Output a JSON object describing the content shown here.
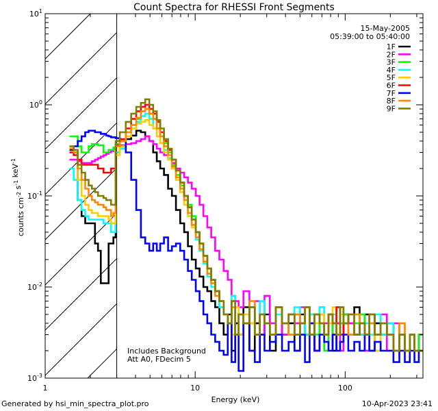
{
  "chart_data": {
    "type": "line",
    "title": "Count Spectra for RHESSI Front Segments",
    "xlabel": "Energy (keV)",
    "ylabel": "counts cm^-2 s^-1 keV^-1",
    "xscale": "log",
    "yscale": "log",
    "xlim": [
      1,
      330
    ],
    "ylim": [
      0.001,
      10
    ],
    "x_ticks": [
      {
        "value": 1,
        "label": "1"
      },
      {
        "value": 10,
        "label": "10"
      },
      {
        "value": 100,
        "label": "100"
      }
    ],
    "y_ticks": [
      {
        "value": 0.001,
        "base": "10",
        "exp": "-3"
      },
      {
        "value": 0.01,
        "base": "10",
        "exp": "-2"
      },
      {
        "value": 0.1,
        "base": "10",
        "exp": "-1"
      },
      {
        "value": 1,
        "base": "10",
        "exp": "0"
      },
      {
        "value": 10,
        "base": "10",
        "exp": "1"
      }
    ],
    "attenuated_region_max_kev": 3,
    "date": "15-May-2005",
    "time_range": "05:39:00 to 05:40:00",
    "annotations": [
      "Includes Background",
      "Att A0, FDecim 5"
    ],
    "energies": [
      1.5,
      1.6,
      1.7,
      1.8,
      1.9,
      2.0,
      2.1,
      2.2,
      2.3,
      2.4,
      2.5,
      2.6,
      2.7,
      2.8,
      2.9,
      3.0,
      3.3,
      3.6,
      3.9,
      4.2,
      4.5,
      4.8,
      5.1,
      5.4,
      5.7,
      6.0,
      6.4,
      6.8,
      7.2,
      7.7,
      8.2,
      8.7,
      9.2,
      9.8,
      10.4,
      11.0,
      11.7,
      12.4,
      13.2,
      14.0,
      15.0,
      16.0,
      17.0,
      18.0,
      19.0,
      20.0,
      22.0,
      24.0,
      26.0,
      28.0,
      30.0,
      33.0,
      36.0,
      40.0,
      44.0,
      48.0,
      52.0,
      56.0,
      60.0,
      65.0,
      70.0,
      75.0,
      80.0,
      85.0,
      90.0,
      95.0,
      100.0,
      110.0,
      120.0,
      130.0,
      140.0,
      150.0,
      165.0,
      180.0,
      200.0,
      220.0,
      240.0,
      260.0,
      280.0,
      300.0,
      320.0
    ],
    "series": [
      {
        "name": "1F",
        "color": "#000000",
        "values": [
          0.32,
          0.3,
          0.09,
          0.06,
          0.05,
          0.05,
          0.05,
          0.03,
          0.025,
          0.011,
          0.011,
          0.011,
          0.03,
          0.03,
          0.035,
          0.3,
          0.33,
          0.42,
          0.46,
          0.52,
          0.5,
          0.45,
          0.4,
          0.3,
          0.24,
          0.2,
          0.17,
          0.12,
          0.1,
          0.07,
          0.05,
          0.04,
          0.028,
          0.02,
          0.016,
          0.013,
          0.01,
          0.009,
          0.007,
          0.006,
          0.004,
          0.003,
          0.005,
          0.002,
          0.004,
          0.003,
          0.006,
          0.002,
          0.004,
          0.003,
          0.005,
          0.002,
          0.006,
          0.003,
          0.004,
          0.002,
          0.005,
          0.003,
          0.004,
          0.002,
          0.004,
          0.003,
          0.005,
          0.002,
          0.004,
          0.003,
          0.005,
          0.004,
          0.006,
          0.003,
          0.005,
          0.002,
          0.004,
          0.003,
          0.004,
          0.002,
          0.003,
          0.002,
          0.003,
          0.002,
          0.003
        ]
      },
      {
        "name": "2F",
        "color": "#ff00ff",
        "values": [
          0.25,
          0.25,
          0.24,
          0.23,
          0.23,
          0.23,
          0.24,
          0.25,
          0.26,
          0.27,
          0.28,
          0.29,
          0.3,
          0.31,
          0.33,
          0.35,
          0.36,
          0.37,
          0.38,
          0.4,
          0.42,
          0.45,
          0.4,
          0.37,
          0.33,
          0.3,
          0.28,
          0.26,
          0.23,
          0.2,
          0.18,
          0.16,
          0.14,
          0.12,
          0.1,
          0.08,
          0.06,
          0.045,
          0.035,
          0.025,
          0.02,
          0.015,
          0.012,
          0.008,
          0.007,
          0.006,
          0.009,
          0.004,
          0.007,
          0.003,
          0.008,
          0.004,
          0.006,
          0.003,
          0.005,
          0.004,
          0.006,
          0.003,
          0.005,
          0.002,
          0.006,
          0.004,
          0.005,
          0.003,
          0.004,
          0.002,
          0.005,
          0.004,
          0.003,
          0.005,
          0.002,
          0.004,
          0.003,
          0.005,
          0.002,
          0.004,
          0.003,
          0.002,
          0.003,
          0.002,
          0.003
        ]
      },
      {
        "name": "3F",
        "color": "#00ff00",
        "values": [
          0.45,
          0.45,
          0.35,
          0.3,
          0.3,
          0.35,
          0.37,
          0.37,
          0.36,
          0.36,
          0.3,
          0.3,
          0.32,
          0.32,
          0.34,
          0.37,
          0.4,
          0.5,
          0.6,
          0.7,
          0.85,
          0.9,
          0.8,
          0.7,
          0.55,
          0.45,
          0.38,
          0.3,
          0.22,
          0.17,
          0.13,
          0.1,
          0.08,
          0.06,
          0.04,
          0.03,
          0.022,
          0.016,
          0.012,
          0.009,
          0.006,
          0.005,
          0.004,
          0.007,
          0.003,
          0.005,
          0.004,
          0.006,
          0.003,
          0.005,
          0.004,
          0.003,
          0.006,
          0.004,
          0.003,
          0.005,
          0.003,
          0.006,
          0.004,
          0.003,
          0.005,
          0.002,
          0.004,
          0.003,
          0.006,
          0.004,
          0.005,
          0.003,
          0.004,
          0.005,
          0.003,
          0.004,
          0.002,
          0.004,
          0.003,
          0.002,
          0.003,
          0.002,
          0.003,
          0.002,
          0.003
        ]
      },
      {
        "name": "4F",
        "color": "#00ffff",
        "values": [
          0.2,
          0.15,
          0.09,
          0.07,
          0.06,
          0.055,
          0.055,
          0.055,
          0.055,
          0.055,
          0.05,
          0.05,
          0.05,
          0.04,
          0.04,
          0.3,
          0.33,
          0.45,
          0.55,
          0.65,
          0.75,
          0.8,
          0.7,
          0.55,
          0.45,
          0.38,
          0.32,
          0.26,
          0.2,
          0.15,
          0.11,
          0.08,
          0.06,
          0.045,
          0.033,
          0.025,
          0.018,
          0.013,
          0.01,
          0.008,
          0.006,
          0.005,
          0.004,
          0.008,
          0.003,
          0.005,
          0.004,
          0.006,
          0.003,
          0.007,
          0.004,
          0.003,
          0.005,
          0.004,
          0.003,
          0.006,
          0.004,
          0.003,
          0.005,
          0.004,
          0.006,
          0.003,
          0.004,
          0.005,
          0.003,
          0.006,
          0.004,
          0.003,
          0.005,
          0.003,
          0.004,
          0.003,
          0.005,
          0.003,
          0.004,
          0.002,
          0.003,
          0.002,
          0.003,
          0.002,
          0.002
        ]
      },
      {
        "name": "5F",
        "color": "#ffcc00",
        "values": [
          0.3,
          0.3,
          0.15,
          0.1,
          0.08,
          0.07,
          0.065,
          0.065,
          0.06,
          0.06,
          0.06,
          0.06,
          0.055,
          0.05,
          0.05,
          0.28,
          0.35,
          0.45,
          0.55,
          0.62,
          0.65,
          0.68,
          0.6,
          0.55,
          0.45,
          0.38,
          0.3,
          0.25,
          0.2,
          0.15,
          0.11,
          0.08,
          0.06,
          0.045,
          0.035,
          0.026,
          0.019,
          0.014,
          0.011,
          0.009,
          0.007,
          0.005,
          0.004,
          0.003,
          0.006,
          0.003,
          0.005,
          0.004,
          0.003,
          0.005,
          0.004,
          0.003,
          0.006,
          0.004,
          0.003,
          0.005,
          0.004,
          0.006,
          0.003,
          0.004,
          0.005,
          0.003,
          0.004,
          0.006,
          0.003,
          0.005,
          0.004,
          0.003,
          0.005,
          0.004,
          0.003,
          0.004,
          0.002,
          0.004,
          0.003,
          0.002,
          0.004,
          0.002,
          0.003,
          0.002,
          0.002
        ]
      },
      {
        "name": "6F",
        "color": "#ff0000",
        "values": [
          0.3,
          0.28,
          0.25,
          0.22,
          0.22,
          0.22,
          0.22,
          0.22,
          0.2,
          0.2,
          0.18,
          0.18,
          0.18,
          0.2,
          0.2,
          0.36,
          0.42,
          0.55,
          0.7,
          0.85,
          0.95,
          1.0,
          0.9,
          0.8,
          0.65,
          0.5,
          0.4,
          0.32,
          0.25,
          0.19,
          0.14,
          0.1,
          0.075,
          0.055,
          0.04,
          0.03,
          0.022,
          0.016,
          0.012,
          0.009,
          0.007,
          0.005,
          0.004,
          0.007,
          0.003,
          0.005,
          0.004,
          0.006,
          0.003,
          0.005,
          0.004,
          0.003,
          0.006,
          0.004,
          0.005,
          0.003,
          0.004,
          0.006,
          0.003,
          0.005,
          0.004,
          0.003,
          0.005,
          0.004,
          0.006,
          0.003,
          0.004,
          0.005,
          0.003,
          0.004,
          0.003,
          0.005,
          0.003,
          0.004,
          0.003,
          0.002,
          0.003,
          0.002,
          0.003,
          0.002,
          0.002
        ]
      },
      {
        "name": "7F",
        "color": "#0000ff",
        "values": [
          0.33,
          0.35,
          0.4,
          0.45,
          0.5,
          0.52,
          0.52,
          0.5,
          0.5,
          0.48,
          0.48,
          0.46,
          0.45,
          0.44,
          0.44,
          0.43,
          0.4,
          0.3,
          0.15,
          0.07,
          0.035,
          0.03,
          0.025,
          0.03,
          0.025,
          0.03,
          0.035,
          0.025,
          0.028,
          0.03,
          0.025,
          0.02,
          0.015,
          0.012,
          0.009,
          0.007,
          0.005,
          0.004,
          0.003,
          0.0025,
          0.002,
          0.0018,
          0.004,
          0.0015,
          0.003,
          0.0012,
          0.004,
          0.002,
          0.0015,
          0.003,
          0.002,
          0.0025,
          0.003,
          0.002,
          0.0025,
          0.002,
          0.003,
          0.0015,
          0.004,
          0.002,
          0.003,
          0.0025,
          0.002,
          0.003,
          0.002,
          0.0025,
          0.003,
          0.002,
          0.0025,
          0.002,
          0.003,
          0.002,
          0.0025,
          0.002,
          0.002,
          0.0015,
          0.002,
          0.0015,
          0.002,
          0.0015,
          0.002
        ]
      },
      {
        "name": "8F",
        "color": "#ff8800",
        "values": [
          0.33,
          0.3,
          0.2,
          0.15,
          0.12,
          0.1,
          0.09,
          0.085,
          0.08,
          0.08,
          0.075,
          0.07,
          0.07,
          0.06,
          0.065,
          0.35,
          0.4,
          0.5,
          0.6,
          0.72,
          0.85,
          0.9,
          0.8,
          0.7,
          0.55,
          0.45,
          0.35,
          0.28,
          0.21,
          0.16,
          0.12,
          0.09,
          0.065,
          0.048,
          0.035,
          0.026,
          0.019,
          0.014,
          0.011,
          0.008,
          0.007,
          0.005,
          0.004,
          0.006,
          0.003,
          0.005,
          0.004,
          0.007,
          0.003,
          0.005,
          0.004,
          0.003,
          0.006,
          0.004,
          0.003,
          0.005,
          0.004,
          0.006,
          0.003,
          0.005,
          0.004,
          0.003,
          0.005,
          0.004,
          0.003,
          0.006,
          0.004,
          0.003,
          0.005,
          0.004,
          0.003,
          0.004,
          0.003,
          0.004,
          0.003,
          0.002,
          0.004,
          0.002,
          0.003,
          0.002,
          0.002
        ]
      },
      {
        "name": "9F",
        "color": "#808000",
        "values": [
          0.35,
          0.32,
          0.22,
          0.18,
          0.15,
          0.13,
          0.12,
          0.11,
          0.1,
          0.1,
          0.095,
          0.09,
          0.09,
          0.08,
          0.08,
          0.4,
          0.5,
          0.65,
          0.8,
          0.95,
          1.05,
          1.15,
          1.0,
          0.85,
          0.68,
          0.55,
          0.42,
          0.33,
          0.25,
          0.19,
          0.14,
          0.1,
          0.075,
          0.055,
          0.04,
          0.03,
          0.022,
          0.016,
          0.012,
          0.009,
          0.007,
          0.005,
          0.004,
          0.007,
          0.003,
          0.005,
          0.004,
          0.006,
          0.003,
          0.005,
          0.004,
          0.003,
          0.006,
          0.004,
          0.005,
          0.003,
          0.004,
          0.006,
          0.003,
          0.005,
          0.004,
          0.003,
          0.005,
          0.004,
          0.003,
          0.006,
          0.004,
          0.005,
          0.003,
          0.004,
          0.003,
          0.005,
          0.003,
          0.004,
          0.003,
          0.002,
          0.003,
          0.002,
          0.003,
          0.002,
          0.002
        ]
      }
    ]
  },
  "footer": {
    "generated_by": "Generated by hsi_min_spectra_plot.pro",
    "timestamp": "10-Apr-2023 23:41"
  }
}
